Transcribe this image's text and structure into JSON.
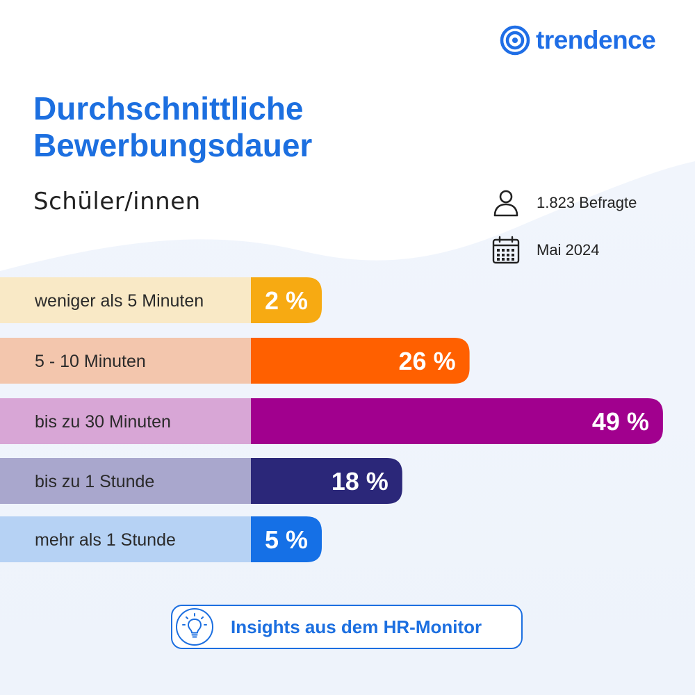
{
  "brand": {
    "name": "trendence",
    "color": "#1f6ee6",
    "icon": "trendence-logo-icon"
  },
  "header": {
    "title_lines": [
      "Durchschnittliche",
      "Bewerbungsdauer"
    ],
    "subtitle": "Schüler/innen"
  },
  "meta": {
    "respondents": {
      "icon": "person-icon",
      "text": "1.823 Befragte"
    },
    "date": {
      "icon": "calendar-icon",
      "text": "Mai 2024"
    }
  },
  "chart_data": {
    "type": "bar",
    "orientation": "horizontal",
    "title": "Durchschnittliche Bewerbungsdauer",
    "subtitle": "Schüler/innen",
    "unit": "%",
    "categories": [
      "weniger als 5 Minuten",
      "5 - 10 Minuten",
      "bis zu 30 Minuten",
      "bis zu 1 Stunde",
      "mehr als 1 Stunde"
    ],
    "values": [
      2,
      26,
      49,
      18,
      5
    ],
    "value_labels": [
      "2 %",
      "26 %",
      "49 %",
      "18 %",
      "5 %"
    ],
    "colors": [
      "#f7aa12",
      "#ff6000",
      "#a1008e",
      "#2b2779",
      "#1570e6"
    ],
    "label_bg_colors": [
      "#f9e9c6",
      "#f3c6ad",
      "#d8a6d6",
      "#a9a7cd",
      "#b6d2f4"
    ],
    "grid": false,
    "legend": "none"
  },
  "footer": {
    "icon": "lightbulb-icon",
    "text": "Insights aus dem HR-Monitor"
  }
}
